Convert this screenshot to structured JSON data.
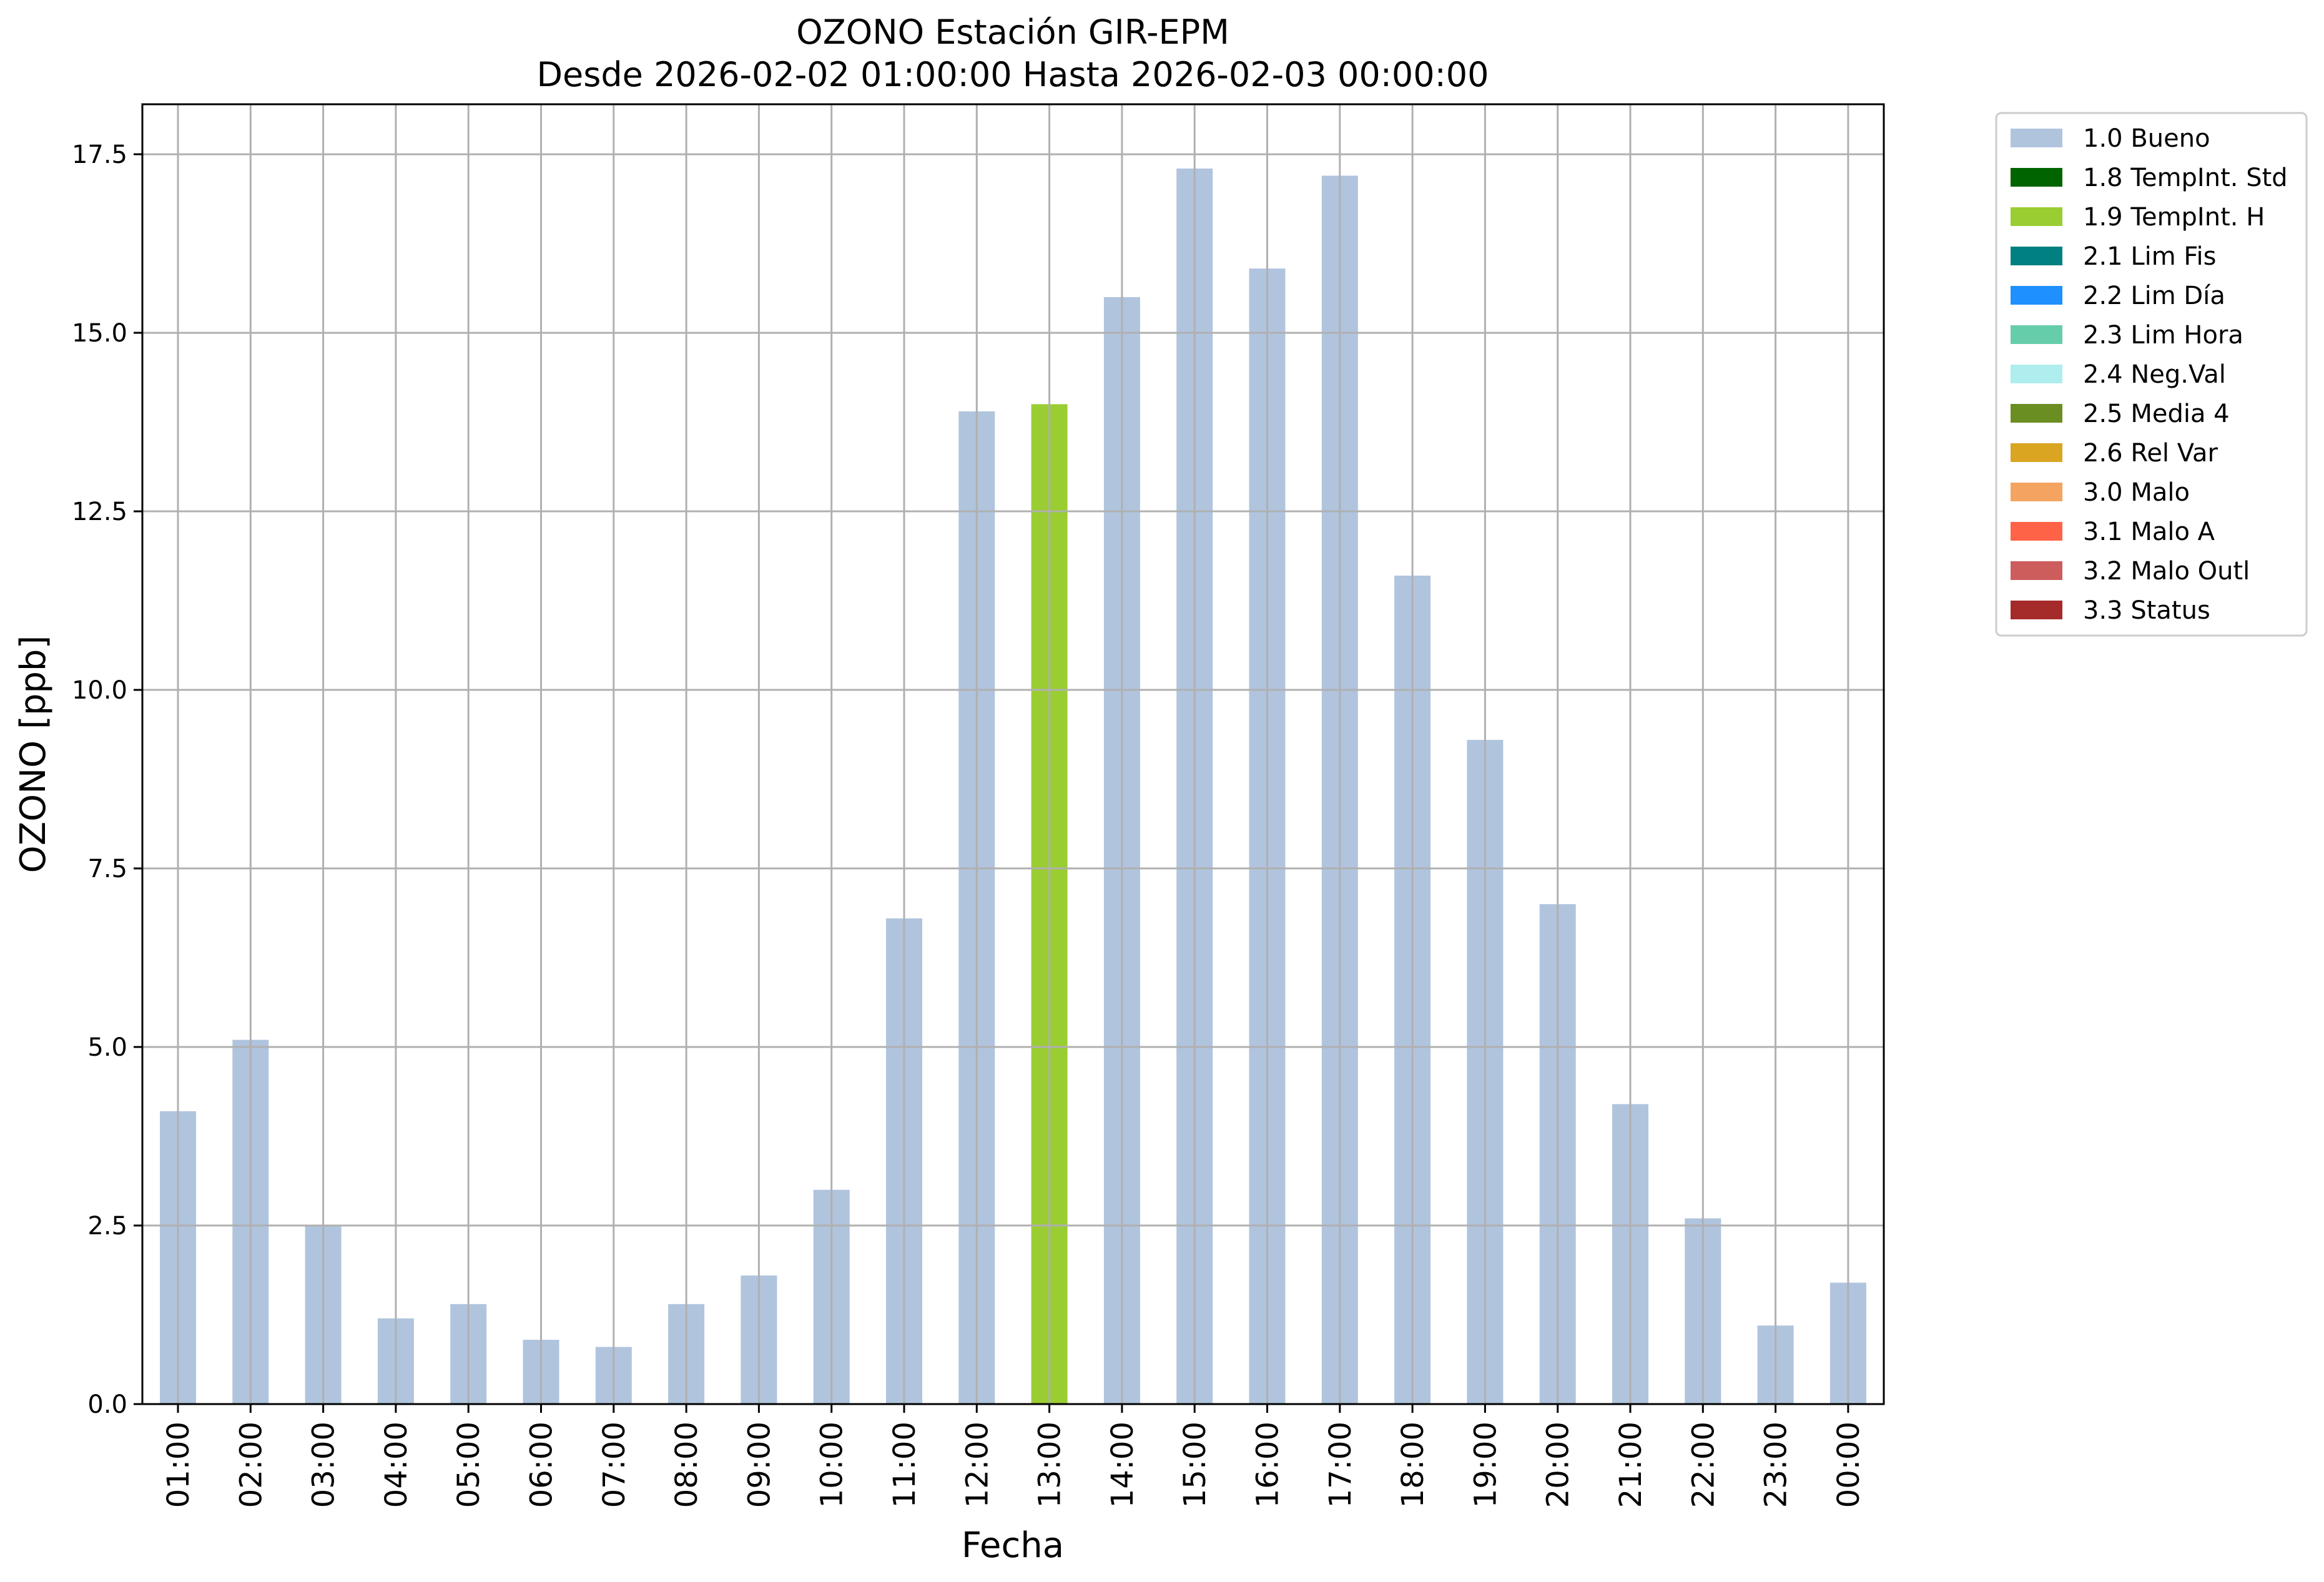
{
  "chart_data": {
    "type": "bar",
    "title_line1": "OZONO Estación GIR-EPM",
    "title_line2": "Desde 2026-02-02 01:00:00 Hasta 2026-02-03 00:00:00",
    "xlabel": "Fecha",
    "ylabel": "OZONO [ppb]",
    "ylim": [
      0,
      18.2
    ],
    "yticks": [
      "0.0",
      "2.5",
      "5.0",
      "7.5",
      "10.0",
      "12.5",
      "15.0",
      "17.5"
    ],
    "grid": true,
    "legend_position": "outside-top-right",
    "categories": [
      "01:00",
      "02:00",
      "03:00",
      "04:00",
      "05:00",
      "06:00",
      "07:00",
      "08:00",
      "09:00",
      "10:00",
      "11:00",
      "12:00",
      "13:00",
      "14:00",
      "15:00",
      "16:00",
      "17:00",
      "18:00",
      "19:00",
      "20:00",
      "21:00",
      "22:00",
      "23:00",
      "00:00"
    ],
    "values": [
      4.1,
      5.1,
      2.5,
      1.2,
      1.4,
      0.9,
      0.8,
      1.4,
      1.8,
      3.0,
      6.8,
      13.9,
      14.0,
      15.5,
      17.3,
      15.9,
      17.2,
      11.6,
      9.3,
      7.0,
      4.2,
      2.6,
      1.1,
      1.7
    ],
    "flags": [
      "1.0 Bueno",
      "1.0 Bueno",
      "1.0 Bueno",
      "1.0 Bueno",
      "1.0 Bueno",
      "1.0 Bueno",
      "1.0 Bueno",
      "1.0 Bueno",
      "1.0 Bueno",
      "1.0 Bueno",
      "1.0 Bueno",
      "1.0 Bueno",
      "1.9 TempInt. H",
      "1.0 Bueno",
      "1.0 Bueno",
      "1.0 Bueno",
      "1.0 Bueno",
      "1.0 Bueno",
      "1.0 Bueno",
      "1.0 Bueno",
      "1.0 Bueno",
      "1.0 Bueno",
      "1.0 Bueno",
      "1.0 Bueno"
    ],
    "legend": [
      {
        "label": "1.0 Bueno",
        "color": "#b0c4de"
      },
      {
        "label": "1.8 TempInt. Std",
        "color": "#006400"
      },
      {
        "label": "1.9 TempInt. H",
        "color": "#9acd32"
      },
      {
        "label": "2.1 Lim Fis",
        "color": "#008080"
      },
      {
        "label": "2.2 Lim Día",
        "color": "#1e90ff"
      },
      {
        "label": "2.3 Lim Hora",
        "color": "#66cdaa"
      },
      {
        "label": "2.4 Neg.Val",
        "color": "#afeeee"
      },
      {
        "label": "2.5 Media 4",
        "color": "#6b8e23"
      },
      {
        "label": "2.6 Rel Var",
        "color": "#daa520"
      },
      {
        "label": "3.0 Malo",
        "color": "#f4a460"
      },
      {
        "label": "3.1 Malo A",
        "color": "#ff6347"
      },
      {
        "label": "3.2 Malo Outl",
        "color": "#cd5c5c"
      },
      {
        "label": "3.3 Status",
        "color": "#a52a2a"
      }
    ]
  }
}
